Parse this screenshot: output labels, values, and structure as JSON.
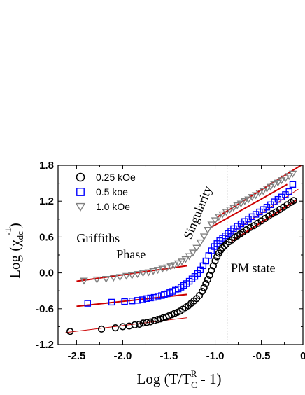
{
  "chart_data": {
    "type": "scatter",
    "xlabel": "Log (T/T",
    "xlabel_sup": "R",
    "xlabel_sub": "C",
    "xlabel_tail": " - 1)",
    "ylabel": "Log (χ",
    "ylabel_sub": "dc",
    "ylabel_sup": "-1",
    "ylabel_tail": ")",
    "xlim": [
      -2.7,
      -0.05
    ],
    "ylim": [
      -1.2,
      1.8
    ],
    "xticks": [
      -2.5,
      -2.0,
      -1.5,
      -1.0,
      -0.5,
      0.0
    ],
    "xtick_labels": [
      "-2.5",
      "-2.0",
      "-1.5",
      "-1.0",
      "-0.5",
      "0.0"
    ],
    "yticks": [
      -1.2,
      -0.6,
      0.0,
      0.6,
      1.2,
      1.8
    ],
    "ytick_labels": [
      "-1.2",
      "-0.6",
      "0.0",
      "0.6",
      "1.2",
      "1.8"
    ],
    "vlines": [
      -1.5,
      -0.87
    ],
    "annotations": [
      {
        "text": "Griffiths",
        "x": -2.5,
        "y": 0.51
      },
      {
        "text": "Phase",
        "x": -2.07,
        "y": 0.24
      },
      {
        "text": "PM state",
        "x": -0.83,
        "y": 0.01
      },
      {
        "text": "Singularity",
        "x": -1.26,
        "y": 0.55,
        "rotate": -68
      }
    ],
    "legend_position": "top-left",
    "series": [
      {
        "name": "0.25 kOe",
        "marker": "circle",
        "color": "#000000",
        "x": [
          -2.57,
          -2.23,
          -2.08,
          -2.0,
          -1.93,
          -1.87,
          -1.82,
          -1.78,
          -1.74,
          -1.7,
          -1.66,
          -1.62,
          -1.59,
          -1.56,
          -1.53,
          -1.5,
          -1.47,
          -1.44,
          -1.41,
          -1.38,
          -1.35,
          -1.32,
          -1.29,
          -1.26,
          -1.23,
          -1.2,
          -1.17,
          -1.14,
          -1.12,
          -1.1,
          -1.08,
          -1.06,
          -1.04,
          -1.02,
          -1.0,
          -0.98,
          -0.96,
          -0.94,
          -0.92,
          -0.9,
          -0.88,
          -0.85,
          -0.82,
          -0.79,
          -0.76,
          -0.73,
          -0.7,
          -0.66,
          -0.62,
          -0.58,
          -0.54,
          -0.5,
          -0.46,
          -0.42,
          -0.38,
          -0.34,
          -0.3,
          -0.26,
          -0.22,
          -0.18,
          -0.15
        ],
        "y": [
          -0.98,
          -0.94,
          -0.92,
          -0.9,
          -0.89,
          -0.87,
          -0.86,
          -0.84,
          -0.83,
          -0.82,
          -0.8,
          -0.78,
          -0.77,
          -0.75,
          -0.74,
          -0.72,
          -0.7,
          -0.68,
          -0.66,
          -0.64,
          -0.61,
          -0.58,
          -0.55,
          -0.51,
          -0.47,
          -0.43,
          -0.38,
          -0.31,
          -0.25,
          -0.18,
          -0.11,
          -0.04,
          0.04,
          0.12,
          0.2,
          0.27,
          0.33,
          0.38,
          0.42,
          0.45,
          0.48,
          0.52,
          0.55,
          0.59,
          0.62,
          0.65,
          0.68,
          0.72,
          0.76,
          0.79,
          0.83,
          0.87,
          0.91,
          0.95,
          0.99,
          1.02,
          1.06,
          1.1,
          1.14,
          1.18,
          1.21
        ]
      },
      {
        "name": "0.5 koe",
        "marker": "square",
        "color": "#0000ff",
        "x": [
          -2.38,
          -2.12,
          -1.98,
          -1.9,
          -1.84,
          -1.79,
          -1.74,
          -1.7,
          -1.66,
          -1.62,
          -1.58,
          -1.55,
          -1.52,
          -1.49,
          -1.46,
          -1.43,
          -1.4,
          -1.37,
          -1.34,
          -1.31,
          -1.28,
          -1.25,
          -1.22,
          -1.19,
          -1.16,
          -1.13,
          -1.1,
          -1.07,
          -1.04,
          -1.01,
          -0.98,
          -0.95,
          -0.92,
          -0.89,
          -0.86,
          -0.83,
          -0.8,
          -0.76,
          -0.72,
          -0.68,
          -0.64,
          -0.6,
          -0.56,
          -0.52,
          -0.48,
          -0.44,
          -0.4,
          -0.36,
          -0.32,
          -0.28,
          -0.24,
          -0.2,
          -0.16
        ],
        "y": [
          -0.51,
          -0.49,
          -0.48,
          -0.47,
          -0.46,
          -0.45,
          -0.43,
          -0.42,
          -0.41,
          -0.39,
          -0.38,
          -0.36,
          -0.35,
          -0.33,
          -0.31,
          -0.29,
          -0.27,
          -0.24,
          -0.21,
          -0.18,
          -0.14,
          -0.1,
          -0.06,
          -0.01,
          0.05,
          0.12,
          0.2,
          0.29,
          0.37,
          0.44,
          0.49,
          0.54,
          0.58,
          0.62,
          0.66,
          0.7,
          0.74,
          0.78,
          0.82,
          0.86,
          0.9,
          0.94,
          0.98,
          1.02,
          1.06,
          1.1,
          1.14,
          1.19,
          1.23,
          1.27,
          1.31,
          1.36,
          1.48
        ]
      },
      {
        "name": "1.0 kOe",
        "marker": "triangle-down",
        "color": "#808080",
        "x": [
          -2.42,
          -2.28,
          -2.18,
          -2.1,
          -2.03,
          -1.96,
          -1.9,
          -1.84,
          -1.78,
          -1.72,
          -1.67,
          -1.62,
          -1.57,
          -1.52,
          -1.48,
          -1.44,
          -1.4,
          -1.36,
          -1.32,
          -1.28,
          -1.24,
          -1.2,
          -1.16,
          -1.12,
          -1.08,
          -1.04,
          -1.0,
          -0.96,
          -0.92,
          -0.88,
          -0.84,
          -0.8,
          -0.76,
          -0.72,
          -0.68,
          -0.64,
          -0.6,
          -0.56,
          -0.52,
          -0.48,
          -0.44,
          -0.4,
          -0.36,
          -0.32,
          -0.28,
          -0.24,
          -0.2,
          -0.16
        ],
        "y": [
          -0.13,
          -0.11,
          -0.1,
          -0.08,
          -0.07,
          -0.05,
          -0.04,
          -0.02,
          0.0,
          0.01,
          0.03,
          0.05,
          0.07,
          0.09,
          0.11,
          0.13,
          0.16,
          0.19,
          0.23,
          0.28,
          0.34,
          0.42,
          0.51,
          0.61,
          0.72,
          0.81,
          0.88,
          0.94,
          0.98,
          1.02,
          1.06,
          1.09,
          1.13,
          1.16,
          1.2,
          1.23,
          1.27,
          1.3,
          1.34,
          1.37,
          1.41,
          1.44,
          1.48,
          1.51,
          1.55,
          1.58,
          1.62,
          1.66
        ]
      }
    ],
    "fit_lines": [
      {
        "x": [
          -2.62,
          -1.3
        ],
        "y": [
          -1.0,
          -0.75
        ],
        "width": 1.0,
        "color": "#cc0000"
      },
      {
        "x": [
          -2.5,
          -1.3
        ],
        "y": [
          -0.56,
          -0.36
        ],
        "width": 2.0,
        "color": "#cc0000"
      },
      {
        "x": [
          -2.5,
          -1.3
        ],
        "y": [
          -0.14,
          0.12
        ],
        "width": 2.0,
        "color": "#cc0000"
      },
      {
        "x": [
          -0.82,
          -0.12
        ],
        "y": [
          0.53,
          1.22
        ],
        "width": 2.2,
        "color": "#cc0000"
      },
      {
        "x": [
          -0.9,
          -0.1
        ],
        "y": [
          0.6,
          1.4
        ],
        "width": 1.0,
        "color": "#cc0000"
      },
      {
        "x": [
          -1.06,
          -0.22
        ],
        "y": [
          0.75,
          1.48
        ],
        "width": 2.0,
        "color": "#cc0000"
      },
      {
        "x": [
          -0.98,
          -0.07
        ],
        "y": [
          0.93,
          1.8
        ],
        "width": 2.0,
        "color": "#cc0000"
      }
    ]
  }
}
